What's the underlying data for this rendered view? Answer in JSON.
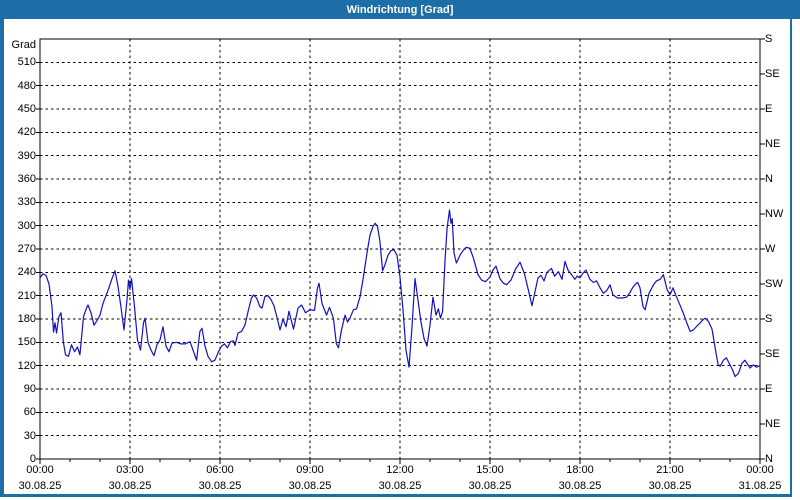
{
  "window": {
    "title": "Windrichtung [Grad]"
  },
  "colors": {
    "frame_blue": "#1d6ea7",
    "line_blue": "#1212bd",
    "grid_black": "#000000",
    "background": "#ffffff"
  },
  "chart": {
    "y_axis_unit_label": "Grad",
    "y_ticks": [
      0,
      30,
      60,
      90,
      120,
      150,
      180,
      210,
      240,
      270,
      300,
      330,
      360,
      390,
      420,
      450,
      480,
      510
    ],
    "right_compass_ticks": [
      {
        "deg": 540,
        "label": "S"
      },
      {
        "deg": 495,
        "label": "SE"
      },
      {
        "deg": 450,
        "label": "E"
      },
      {
        "deg": 405,
        "label": "NE"
      },
      {
        "deg": 360,
        "label": "N"
      },
      {
        "deg": 315,
        "label": "NW"
      },
      {
        "deg": 270,
        "label": "W"
      },
      {
        "deg": 225,
        "label": "SW"
      },
      {
        "deg": 180,
        "label": "S"
      },
      {
        "deg": 135,
        "label": "SE"
      },
      {
        "deg": 90,
        "label": "E"
      },
      {
        "deg": 45,
        "label": "NE"
      },
      {
        "deg": 0,
        "label": "N"
      }
    ],
    "x_ticks": [
      {
        "hour": 0,
        "time": "00:00",
        "date": "30.08.25"
      },
      {
        "hour": 3,
        "time": "03:00",
        "date": "30.08.25"
      },
      {
        "hour": 6,
        "time": "06:00",
        "date": "30.08.25"
      },
      {
        "hour": 9,
        "time": "09:00",
        "date": "30.08.25"
      },
      {
        "hour": 12,
        "time": "12:00",
        "date": "30.08.25"
      },
      {
        "hour": 15,
        "time": "15:00",
        "date": "30.08.25"
      },
      {
        "hour": 18,
        "time": "18:00",
        "date": "30.08.25"
      },
      {
        "hour": 21,
        "time": "21:00",
        "date": "30.08.25"
      },
      {
        "hour": 24,
        "time": "00:00",
        "date": "31.08.25"
      }
    ]
  },
  "chart_data": {
    "type": "line",
    "title": "Windrichtung [Grad]",
    "xlabel": "time (30.08.25 00:00 - 31.08.25 00:00, major ticks every 3 h, minor every 1 h)",
    "ylabel": "Grad",
    "ylim": [
      0,
      540
    ],
    "xlim_hours": [
      0,
      24
    ],
    "grid": "dashed, 30-degree horizontal lines and 3-hour vertical lines",
    "legend": "none",
    "series": [
      {
        "name": "Windrichtung",
        "color": "#1212bd",
        "points": [
          [
            0,
            233
          ],
          [
            0.1,
            238
          ],
          [
            0.2,
            236
          ],
          [
            0.3,
            225
          ],
          [
            0.4,
            196
          ],
          [
            0.45,
            163
          ],
          [
            0.5,
            175
          ],
          [
            0.55,
            162
          ],
          [
            0.63,
            183
          ],
          [
            0.7,
            188
          ],
          [
            0.78,
            150
          ],
          [
            0.85,
            134
          ],
          [
            0.95,
            132
          ],
          [
            1.05,
            147
          ],
          [
            1.15,
            138
          ],
          [
            1.25,
            144
          ],
          [
            1.33,
            134
          ],
          [
            1.45,
            183
          ],
          [
            1.55,
            194
          ],
          [
            1.6,
            198
          ],
          [
            1.7,
            188
          ],
          [
            1.8,
            172
          ],
          [
            1.9,
            178
          ],
          [
            2,
            185
          ],
          [
            2.1,
            200
          ],
          [
            2.25,
            215
          ],
          [
            2.4,
            232
          ],
          [
            2.5,
            242
          ],
          [
            2.6,
            222
          ],
          [
            2.7,
            195
          ],
          [
            2.8,
            166
          ],
          [
            2.9,
            205
          ],
          [
            2.95,
            230
          ],
          [
            3,
            218
          ],
          [
            3.05,
            232
          ],
          [
            3.15,
            196
          ],
          [
            3.25,
            153
          ],
          [
            3.35,
            140
          ],
          [
            3.45,
            175
          ],
          [
            3.5,
            181
          ],
          [
            3.6,
            150
          ],
          [
            3.7,
            140
          ],
          [
            3.8,
            133
          ],
          [
            3.9,
            147
          ],
          [
            4,
            153
          ],
          [
            4.1,
            170
          ],
          [
            4.2,
            145
          ],
          [
            4.3,
            138
          ],
          [
            4.4,
            149
          ],
          [
            4.55,
            150
          ],
          [
            4.7,
            148
          ],
          [
            4.85,
            148
          ],
          [
            5,
            151
          ],
          [
            5.1,
            140
          ],
          [
            5.22,
            127
          ],
          [
            5.33,
            164
          ],
          [
            5.4,
            168
          ],
          [
            5.5,
            145
          ],
          [
            5.6,
            132
          ],
          [
            5.72,
            125
          ],
          [
            5.83,
            127
          ],
          [
            5.95,
            138
          ],
          [
            6.05,
            145
          ],
          [
            6.15,
            148
          ],
          [
            6.25,
            143
          ],
          [
            6.35,
            151
          ],
          [
            6.45,
            152
          ],
          [
            6.5,
            146
          ],
          [
            6.6,
            162
          ],
          [
            6.72,
            164
          ],
          [
            6.83,
            172
          ],
          [
            6.95,
            192
          ],
          [
            7.05,
            207
          ],
          [
            7.12,
            211
          ],
          [
            7.22,
            207
          ],
          [
            7.33,
            196
          ],
          [
            7.4,
            194
          ],
          [
            7.5,
            209
          ],
          [
            7.6,
            210
          ],
          [
            7.7,
            205
          ],
          [
            7.8,
            197
          ],
          [
            7.9,
            182
          ],
          [
            8,
            166
          ],
          [
            8.1,
            180
          ],
          [
            8.2,
            170
          ],
          [
            8.3,
            190
          ],
          [
            8.45,
            167
          ],
          [
            8.6,
            194
          ],
          [
            8.72,
            198
          ],
          [
            8.85,
            188
          ],
          [
            9,
            192
          ],
          [
            9.15,
            191
          ],
          [
            9.25,
            220
          ],
          [
            9.3,
            226
          ],
          [
            9.4,
            200
          ],
          [
            9.55,
            185
          ],
          [
            9.65,
            195
          ],
          [
            9.78,
            181
          ],
          [
            9.88,
            148
          ],
          [
            9.95,
            143
          ],
          [
            10.05,
            166
          ],
          [
            10.17,
            185
          ],
          [
            10.25,
            176
          ],
          [
            10.33,
            181
          ],
          [
            10.45,
            192
          ],
          [
            10.55,
            193
          ],
          [
            10.67,
            209
          ],
          [
            10.78,
            234
          ],
          [
            10.9,
            265
          ],
          [
            11,
            288
          ],
          [
            11.1,
            299
          ],
          [
            11.17,
            303
          ],
          [
            11.25,
            299
          ],
          [
            11.33,
            280
          ],
          [
            11.42,
            242
          ],
          [
            11.5,
            250
          ],
          [
            11.6,
            262
          ],
          [
            11.7,
            268
          ],
          [
            11.8,
            269
          ],
          [
            11.9,
            262
          ],
          [
            12,
            234
          ],
          [
            12.1,
            192
          ],
          [
            12.2,
            140
          ],
          [
            12.3,
            118
          ],
          [
            12.4,
            170
          ],
          [
            12.5,
            232
          ],
          [
            12.6,
            204
          ],
          [
            12.7,
            176
          ],
          [
            12.8,
            155
          ],
          [
            12.9,
            145
          ],
          [
            13,
            172
          ],
          [
            13.1,
            208
          ],
          [
            13.2,
            185
          ],
          [
            13.28,
            193
          ],
          [
            13.35,
            181
          ],
          [
            13.42,
            190
          ],
          [
            13.5,
            255
          ],
          [
            13.57,
            297
          ],
          [
            13.65,
            320
          ],
          [
            13.7,
            303
          ],
          [
            13.74,
            309
          ],
          [
            13.8,
            265
          ],
          [
            13.88,
            252
          ],
          [
            14,
            262
          ],
          [
            14.1,
            268
          ],
          [
            14.2,
            272
          ],
          [
            14.33,
            271
          ],
          [
            14.45,
            258
          ],
          [
            14.6,
            237
          ],
          [
            14.72,
            230
          ],
          [
            14.85,
            228
          ],
          [
            15,
            234
          ],
          [
            15.1,
            243
          ],
          [
            15.2,
            248
          ],
          [
            15.33,
            232
          ],
          [
            15.45,
            226
          ],
          [
            15.55,
            224
          ],
          [
            15.7,
            230
          ],
          [
            15.85,
            244
          ],
          [
            16,
            253
          ],
          [
            16.15,
            238
          ],
          [
            16.28,
            217
          ],
          [
            16.4,
            197
          ],
          [
            16.5,
            215
          ],
          [
            16.6,
            233
          ],
          [
            16.7,
            236
          ],
          [
            16.8,
            229
          ],
          [
            16.9,
            240
          ],
          [
            17.05,
            245
          ],
          [
            17.15,
            235
          ],
          [
            17.28,
            241
          ],
          [
            17.4,
            231
          ],
          [
            17.5,
            254
          ],
          [
            17.6,
            243
          ],
          [
            17.72,
            237
          ],
          [
            17.83,
            231
          ],
          [
            17.9,
            235
          ],
          [
            18,
            233
          ],
          [
            18.1,
            239
          ],
          [
            18.2,
            243
          ],
          [
            18.33,
            231
          ],
          [
            18.45,
            227
          ],
          [
            18.55,
            229
          ],
          [
            18.67,
            220
          ],
          [
            18.78,
            213
          ],
          [
            18.9,
            217
          ],
          [
            19,
            224
          ],
          [
            19.1,
            211
          ],
          [
            19.25,
            207
          ],
          [
            19.4,
            207
          ],
          [
            19.55,
            208
          ],
          [
            19.65,
            213
          ],
          [
            19.75,
            220
          ],
          [
            19.85,
            225
          ],
          [
            19.92,
            227
          ],
          [
            20,
            220
          ],
          [
            20.1,
            196
          ],
          [
            20.17,
            192
          ],
          [
            20.3,
            213
          ],
          [
            20.45,
            224
          ],
          [
            20.55,
            229
          ],
          [
            20.67,
            231
          ],
          [
            20.78,
            237
          ],
          [
            20.9,
            218
          ],
          [
            21,
            211
          ],
          [
            21.1,
            220
          ],
          [
            21.2,
            210
          ],
          [
            21.3,
            201
          ],
          [
            21.45,
            187
          ],
          [
            21.55,
            176
          ],
          [
            21.67,
            164
          ],
          [
            21.78,
            166
          ],
          [
            21.9,
            171
          ],
          [
            22,
            175
          ],
          [
            22.1,
            179
          ],
          [
            22.17,
            181
          ],
          [
            22.28,
            177
          ],
          [
            22.4,
            167
          ],
          [
            22.5,
            144
          ],
          [
            22.6,
            122
          ],
          [
            22.67,
            119
          ],
          [
            22.78,
            127
          ],
          [
            22.88,
            130
          ],
          [
            23,
            121
          ],
          [
            23.08,
            115
          ],
          [
            23.17,
            106
          ],
          [
            23.28,
            110
          ],
          [
            23.4,
            123
          ],
          [
            23.5,
            127
          ],
          [
            23.6,
            121
          ],
          [
            23.67,
            117
          ],
          [
            23.78,
            121
          ],
          [
            23.88,
            118
          ],
          [
            24,
            120
          ]
        ]
      }
    ]
  }
}
